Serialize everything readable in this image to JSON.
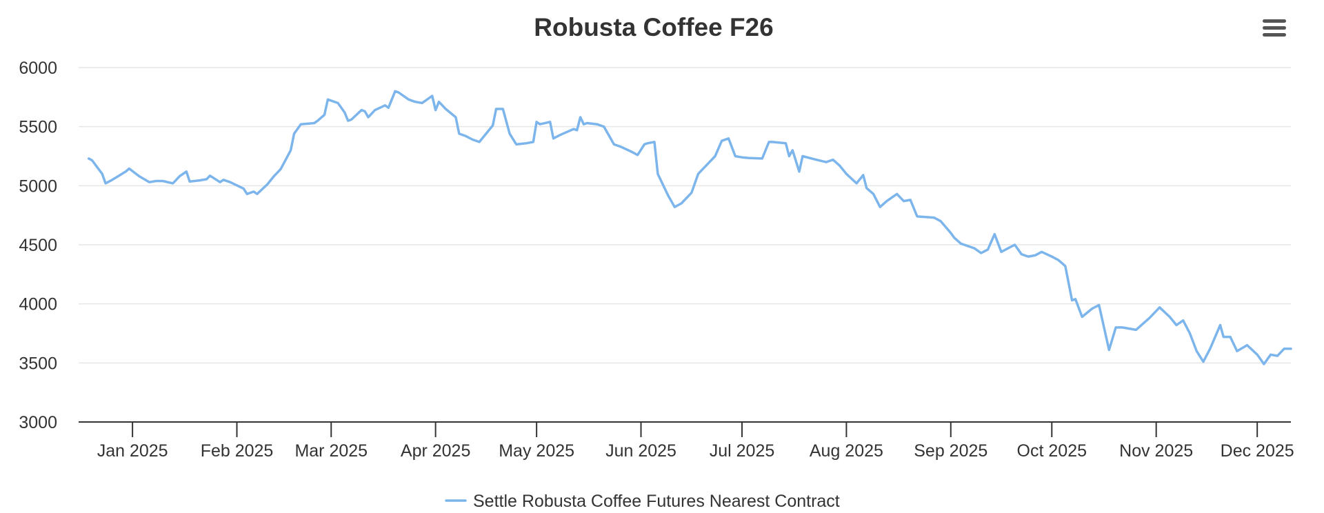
{
  "chart_data": {
    "type": "line",
    "title": "Robusta Coffee F26",
    "xlabel": "",
    "ylabel": "",
    "ylim": [
      3000,
      6000
    ],
    "xlim": [
      "2024-12-16",
      "2025-12-11"
    ],
    "y_ticks": [
      "6000",
      "5500",
      "5000",
      "4500",
      "4000",
      "3500",
      "3000"
    ],
    "x_ticks": [
      {
        "date": "2025-01-01",
        "label": "Jan 2025"
      },
      {
        "date": "2025-02-01",
        "label": "Feb 2025"
      },
      {
        "date": "2025-03-01",
        "label": "Mar 2025"
      },
      {
        "date": "2025-04-01",
        "label": "Apr 2025"
      },
      {
        "date": "2025-05-01",
        "label": "May 2025"
      },
      {
        "date": "2025-06-01",
        "label": "Jun 2025"
      },
      {
        "date": "2025-07-01",
        "label": "Jul 2025"
      },
      {
        "date": "2025-08-01",
        "label": "Aug 2025"
      },
      {
        "date": "2025-09-01",
        "label": "Sep 2025"
      },
      {
        "date": "2025-10-01",
        "label": "Oct 2025"
      },
      {
        "date": "2025-11-01",
        "label": "Nov 2025"
      },
      {
        "date": "2025-12-01",
        "label": "Dec 2025"
      }
    ],
    "grid": true,
    "legend_position": "bottom-center",
    "series": [
      {
        "name": "Settle Robusta Coffee Futures Nearest Contract",
        "color": "#7cb5ec",
        "points": [
          [
            "2024-12-19",
            5230
          ],
          [
            "2024-12-20",
            5215
          ],
          [
            "2024-12-23",
            5100
          ],
          [
            "2024-12-24",
            5020
          ],
          [
            "2024-12-26",
            5050
          ],
          [
            "2024-12-30",
            5120
          ],
          [
            "2024-12-31",
            5145
          ],
          [
            "2025-01-03",
            5080
          ],
          [
            "2025-01-06",
            5030
          ],
          [
            "2025-01-08",
            5040
          ],
          [
            "2025-01-10",
            5040
          ],
          [
            "2025-01-13",
            5020
          ],
          [
            "2025-01-15",
            5080
          ],
          [
            "2025-01-17",
            5120
          ],
          [
            "2025-01-18",
            5035
          ],
          [
            "2025-01-21",
            5045
          ],
          [
            "2025-01-23",
            5055
          ],
          [
            "2025-01-24",
            5085
          ],
          [
            "2025-01-27",
            5030
          ],
          [
            "2025-01-28",
            5050
          ],
          [
            "2025-01-30",
            5030
          ],
          [
            "2025-02-03",
            4975
          ],
          [
            "2025-02-04",
            4930
          ],
          [
            "2025-02-06",
            4950
          ],
          [
            "2025-02-07",
            4930
          ],
          [
            "2025-02-10",
            5010
          ],
          [
            "2025-02-12",
            5080
          ],
          [
            "2025-02-14",
            5140
          ],
          [
            "2025-02-17",
            5300
          ],
          [
            "2025-02-18",
            5440
          ],
          [
            "2025-02-20",
            5520
          ],
          [
            "2025-02-24",
            5530
          ],
          [
            "2025-02-25",
            5550
          ],
          [
            "2025-02-27",
            5600
          ],
          [
            "2025-02-28",
            5730
          ],
          [
            "2025-03-03",
            5700
          ],
          [
            "2025-03-05",
            5620
          ],
          [
            "2025-03-06",
            5550
          ],
          [
            "2025-03-07",
            5560
          ],
          [
            "2025-03-10",
            5640
          ],
          [
            "2025-03-11",
            5630
          ],
          [
            "2025-03-12",
            5580
          ],
          [
            "2025-03-14",
            5640
          ],
          [
            "2025-03-17",
            5680
          ],
          [
            "2025-03-18",
            5660
          ],
          [
            "2025-03-20",
            5800
          ],
          [
            "2025-03-21",
            5790
          ],
          [
            "2025-03-24",
            5730
          ],
          [
            "2025-03-26",
            5710
          ],
          [
            "2025-03-28",
            5700
          ],
          [
            "2025-03-31",
            5760
          ],
          [
            "2025-04-01",
            5640
          ],
          [
            "2025-04-02",
            5710
          ],
          [
            "2025-04-04",
            5650
          ],
          [
            "2025-04-07",
            5580
          ],
          [
            "2025-04-08",
            5440
          ],
          [
            "2025-04-10",
            5420
          ],
          [
            "2025-04-12",
            5390
          ],
          [
            "2025-04-14",
            5370
          ],
          [
            "2025-04-16",
            5440
          ],
          [
            "2025-04-18",
            5510
          ],
          [
            "2025-04-19",
            5650
          ],
          [
            "2025-04-21",
            5650
          ],
          [
            "2025-04-23",
            5440
          ],
          [
            "2025-04-25",
            5350
          ],
          [
            "2025-04-28",
            5360
          ],
          [
            "2025-04-30",
            5370
          ],
          [
            "2025-05-01",
            5540
          ],
          [
            "2025-05-02",
            5520
          ],
          [
            "2025-05-05",
            5540
          ],
          [
            "2025-05-06",
            5400
          ],
          [
            "2025-05-08",
            5430
          ],
          [
            "2025-05-12",
            5480
          ],
          [
            "2025-05-13",
            5470
          ],
          [
            "2025-05-14",
            5580
          ],
          [
            "2025-05-15",
            5520
          ],
          [
            "2025-05-16",
            5530
          ],
          [
            "2025-05-19",
            5520
          ],
          [
            "2025-05-20",
            5510
          ],
          [
            "2025-05-21",
            5500
          ],
          [
            "2025-05-24",
            5350
          ],
          [
            "2025-05-26",
            5330
          ],
          [
            "2025-05-29",
            5290
          ],
          [
            "2025-05-31",
            5260
          ],
          [
            "2025-06-02",
            5350
          ],
          [
            "2025-06-03",
            5360
          ],
          [
            "2025-06-05",
            5370
          ],
          [
            "2025-06-06",
            5100
          ],
          [
            "2025-06-09",
            4920
          ],
          [
            "2025-06-11",
            4820
          ],
          [
            "2025-06-13",
            4850
          ],
          [
            "2025-06-16",
            4940
          ],
          [
            "2025-06-18",
            5100
          ],
          [
            "2025-06-20",
            5160
          ],
          [
            "2025-06-23",
            5250
          ],
          [
            "2025-06-25",
            5380
          ],
          [
            "2025-06-27",
            5400
          ],
          [
            "2025-06-29",
            5250
          ],
          [
            "2025-07-01",
            5240
          ],
          [
            "2025-07-03",
            5235
          ],
          [
            "2025-07-07",
            5230
          ],
          [
            "2025-07-08",
            5300
          ],
          [
            "2025-07-09",
            5370
          ],
          [
            "2025-07-10",
            5370
          ],
          [
            "2025-07-14",
            5360
          ],
          [
            "2025-07-15",
            5250
          ],
          [
            "2025-07-16",
            5300
          ],
          [
            "2025-07-18",
            5120
          ],
          [
            "2025-07-19",
            5250
          ],
          [
            "2025-07-23",
            5220
          ],
          [
            "2025-07-26",
            5200
          ],
          [
            "2025-07-28",
            5220
          ],
          [
            "2025-07-30",
            5170
          ],
          [
            "2025-08-01",
            5100
          ],
          [
            "2025-08-04",
            5020
          ],
          [
            "2025-08-06",
            5090
          ],
          [
            "2025-08-07",
            4980
          ],
          [
            "2025-08-09",
            4930
          ],
          [
            "2025-08-11",
            4820
          ],
          [
            "2025-08-13",
            4870
          ],
          [
            "2025-08-16",
            4930
          ],
          [
            "2025-08-18",
            4870
          ],
          [
            "2025-08-20",
            4880
          ],
          [
            "2025-08-22",
            4740
          ],
          [
            "2025-08-27",
            4730
          ],
          [
            "2025-08-29",
            4700
          ],
          [
            "2025-09-01",
            4600
          ],
          [
            "2025-09-02",
            4560
          ],
          [
            "2025-09-04",
            4510
          ],
          [
            "2025-09-06",
            4490
          ],
          [
            "2025-09-08",
            4470
          ],
          [
            "2025-09-10",
            4430
          ],
          [
            "2025-09-12",
            4460
          ],
          [
            "2025-09-14",
            4590
          ],
          [
            "2025-09-16",
            4440
          ],
          [
            "2025-09-18",
            4470
          ],
          [
            "2025-09-20",
            4500
          ],
          [
            "2025-09-22",
            4420
          ],
          [
            "2025-09-24",
            4400
          ],
          [
            "2025-09-26",
            4410
          ],
          [
            "2025-09-28",
            4440
          ],
          [
            "2025-10-01",
            4400
          ],
          [
            "2025-10-03",
            4370
          ],
          [
            "2025-10-05",
            4320
          ],
          [
            "2025-10-07",
            4030
          ],
          [
            "2025-10-08",
            4040
          ],
          [
            "2025-10-10",
            3890
          ],
          [
            "2025-10-13",
            3960
          ],
          [
            "2025-10-15",
            3990
          ],
          [
            "2025-10-18",
            3610
          ],
          [
            "2025-10-20",
            3800
          ],
          [
            "2025-10-22",
            3800
          ],
          [
            "2025-10-26",
            3780
          ],
          [
            "2025-10-30",
            3880
          ],
          [
            "2025-11-02",
            3970
          ],
          [
            "2025-11-05",
            3890
          ],
          [
            "2025-11-07",
            3820
          ],
          [
            "2025-11-09",
            3860
          ],
          [
            "2025-11-11",
            3750
          ],
          [
            "2025-11-13",
            3600
          ],
          [
            "2025-11-15",
            3510
          ],
          [
            "2025-11-17",
            3620
          ],
          [
            "2025-11-20",
            3820
          ],
          [
            "2025-11-21",
            3720
          ],
          [
            "2025-11-23",
            3720
          ],
          [
            "2025-11-25",
            3600
          ],
          [
            "2025-11-28",
            3650
          ],
          [
            "2025-12-01",
            3570
          ],
          [
            "2025-12-03",
            3490
          ],
          [
            "2025-12-05",
            3570
          ],
          [
            "2025-12-07",
            3560
          ],
          [
            "2025-12-09",
            3620
          ],
          [
            "2025-12-11",
            3620
          ]
        ]
      }
    ]
  },
  "toolbar": {
    "menu_icon": "hamburger-menu-icon"
  }
}
